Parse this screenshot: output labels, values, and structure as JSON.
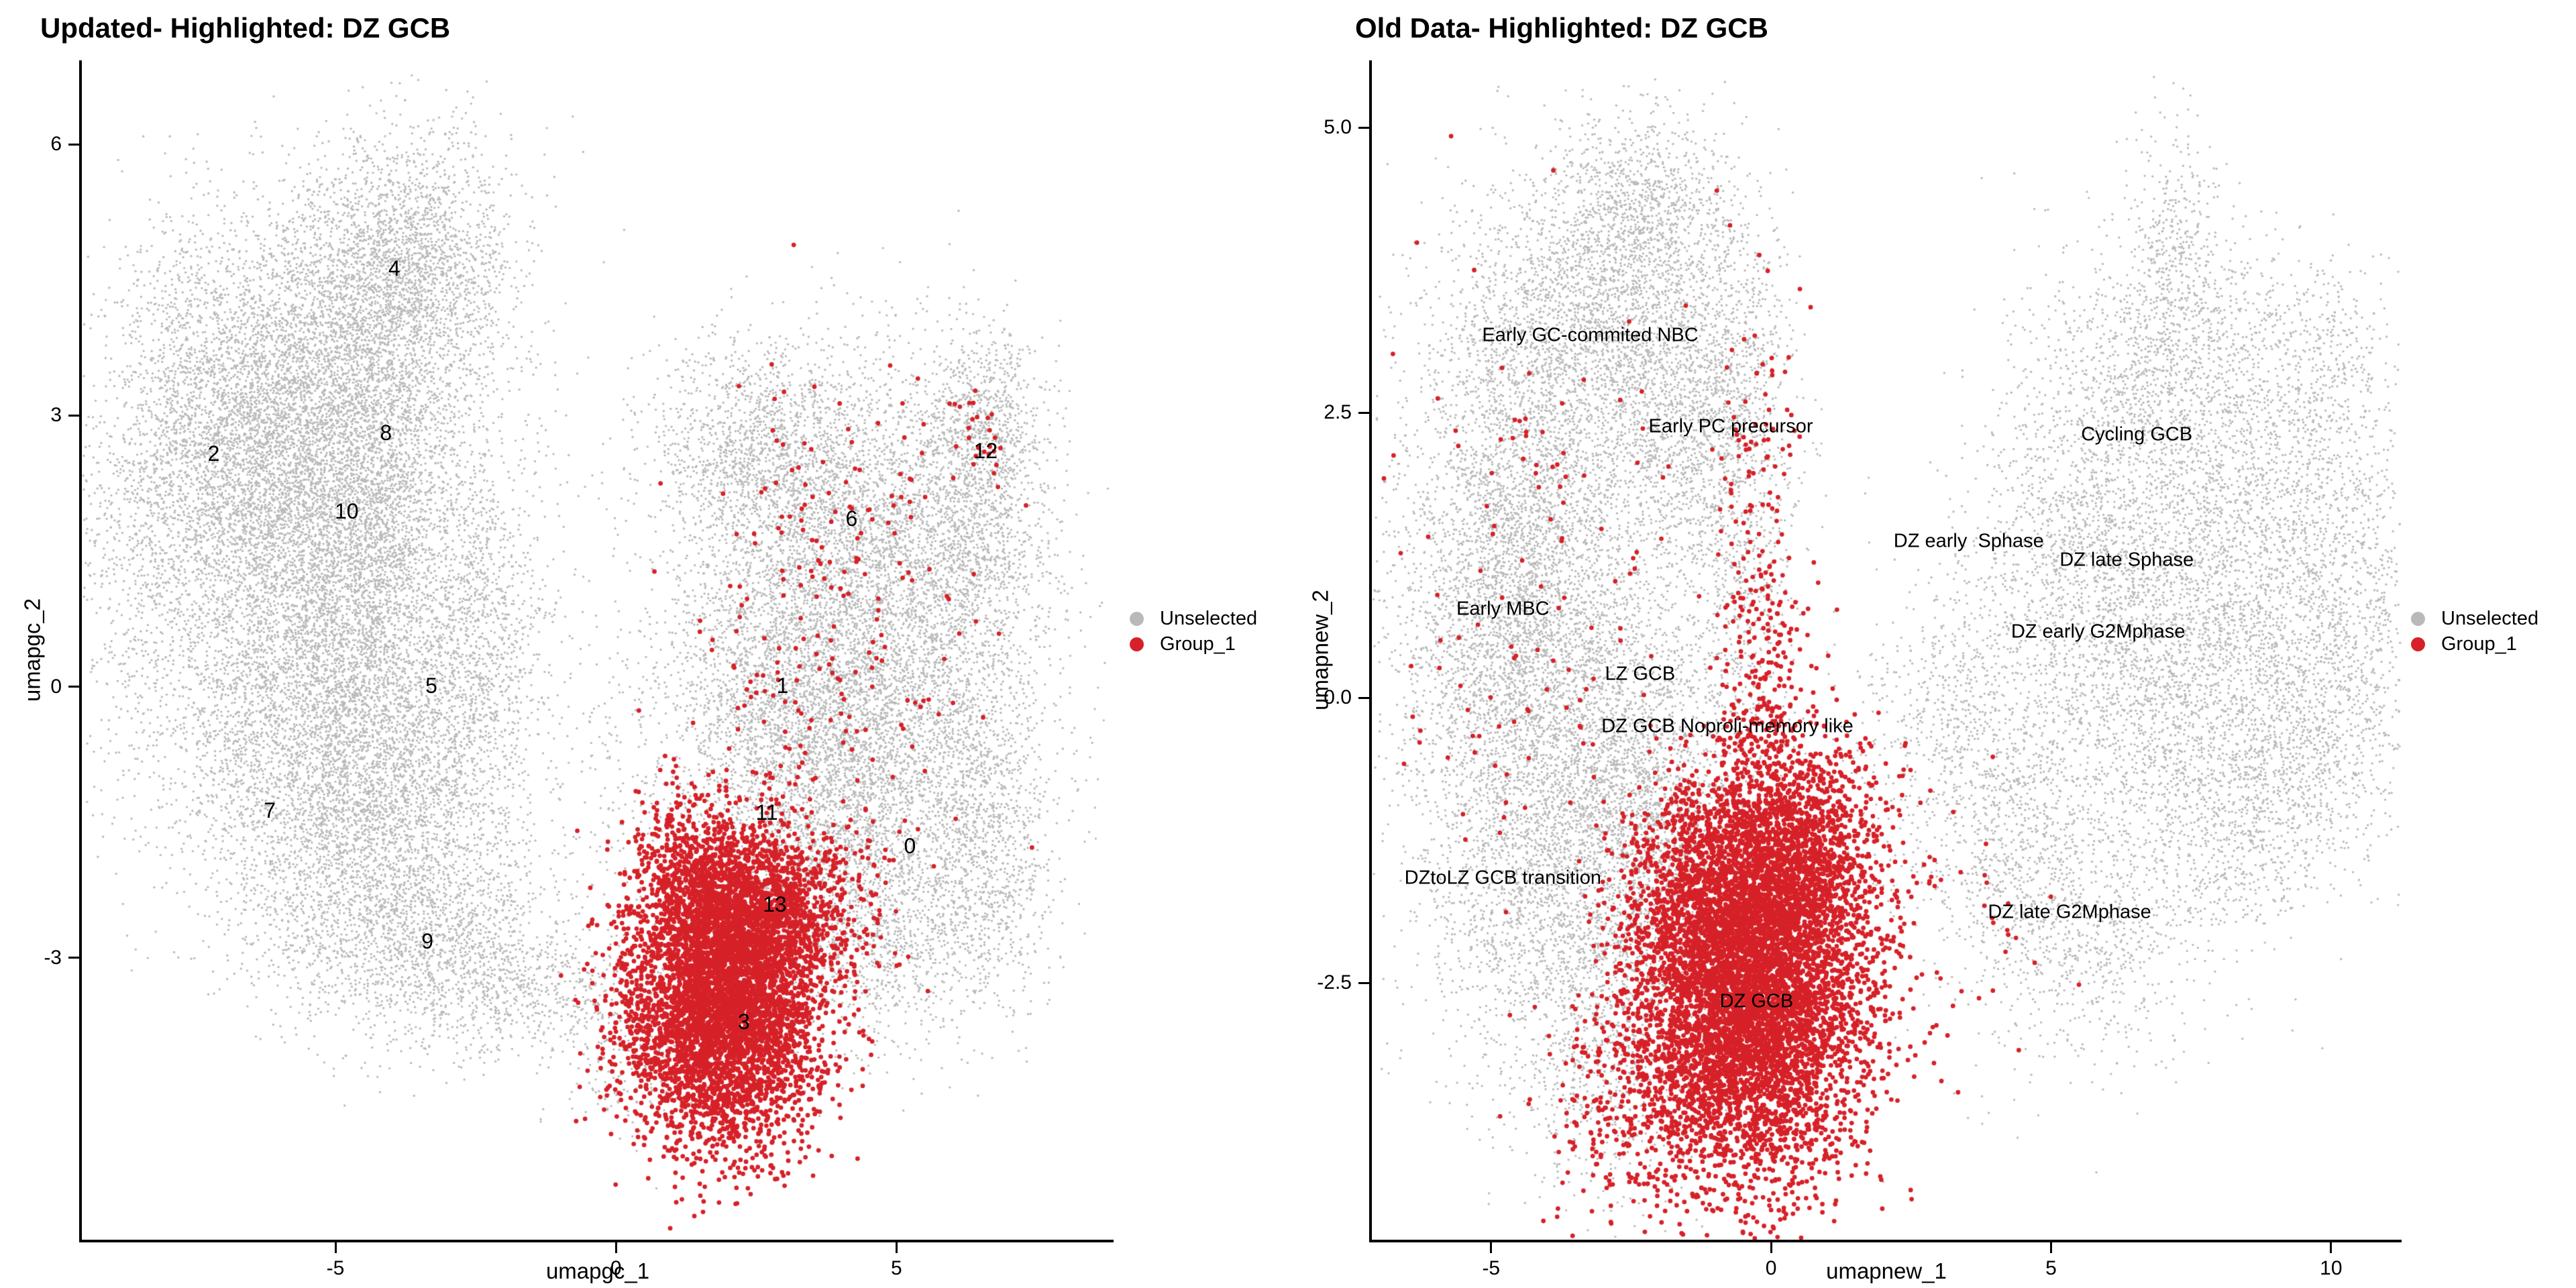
{
  "figure": {
    "background": "#ffffff",
    "point_color_unselected": "#B9B9B9",
    "point_color_highlight": "#D62128"
  },
  "chart_data": [
    {
      "type": "scatter",
      "title": "Updated- Highlighted: DZ GCB",
      "xlabel": "umapgc_1",
      "ylabel": "umapgc_2",
      "xlim": [
        -9.52,
        8.87
      ],
      "ylim": [
        -6.12,
        6.93
      ],
      "x_ticks": [
        {
          "value": -5,
          "label": "-5"
        },
        {
          "value": 0,
          "label": "0"
        },
        {
          "value": 5,
          "label": "5"
        }
      ],
      "y_ticks": [
        {
          "value": 6,
          "label": "6"
        },
        {
          "value": 3,
          "label": "3"
        },
        {
          "value": 0,
          "label": "0"
        },
        {
          "value": -3,
          "label": "-3"
        }
      ],
      "legend": [
        {
          "label": "Unselected",
          "color": "#B9B9B9"
        },
        {
          "label": "Group_1",
          "color": "#D62128"
        }
      ],
      "groups": [
        {
          "name": "Unselected",
          "color": "#B9B9B9",
          "point_radius": 1.7
        },
        {
          "name": "Group_1",
          "color": "#D62128",
          "point_radius": 3.4
        }
      ],
      "cluster_labels": [
        {
          "label": "4",
          "x": -3.95,
          "y": 4.63
        },
        {
          "label": "8",
          "x": -4.1,
          "y": 2.81
        },
        {
          "label": "2",
          "x": -7.17,
          "y": 2.58
        },
        {
          "label": "10",
          "x": -4.8,
          "y": 1.94
        },
        {
          "label": "6",
          "x": 4.2,
          "y": 1.86
        },
        {
          "label": "12",
          "x": 6.59,
          "y": 2.61
        },
        {
          "label": "5",
          "x": -3.29,
          "y": 0.01
        },
        {
          "label": "1",
          "x": 2.97,
          "y": 0.01
        },
        {
          "label": "7",
          "x": -6.17,
          "y": -1.37
        },
        {
          "label": "11",
          "x": 2.69,
          "y": -1.39
        },
        {
          "label": "0",
          "x": 5.24,
          "y": -1.76
        },
        {
          "label": "13",
          "x": 2.83,
          "y": -2.41
        },
        {
          "label": "9",
          "x": -3.36,
          "y": -2.82
        },
        {
          "label": "3",
          "x": 2.28,
          "y": -3.71
        }
      ],
      "annotations": [],
      "density_blobs": [
        {
          "group": "Unselected",
          "x": -3.9,
          "y": 4.6,
          "sx": 1.05,
          "sy": 0.75,
          "n": 2600
        },
        {
          "group": "Unselected",
          "x": -5.6,
          "y": 3.4,
          "sx": 1.25,
          "sy": 0.8,
          "n": 2200
        },
        {
          "group": "Unselected",
          "x": -6.8,
          "y": 2.3,
          "sx": 1.05,
          "sy": 0.9,
          "n": 2200
        },
        {
          "group": "Unselected",
          "x": -4.4,
          "y": 2.3,
          "sx": 1.0,
          "sy": 0.9,
          "n": 2200
        },
        {
          "group": "Unselected",
          "x": -5.0,
          "y": 1.2,
          "sx": 1.3,
          "sy": 0.8,
          "n": 2000
        },
        {
          "group": "Unselected",
          "x": -5.8,
          "y": -0.3,
          "sx": 1.3,
          "sy": 0.9,
          "n": 2200
        },
        {
          "group": "Unselected",
          "x": -4.0,
          "y": -0.6,
          "sx": 1.0,
          "sy": 0.9,
          "n": 1800
        },
        {
          "group": "Unselected",
          "x": -4.6,
          "y": -2.0,
          "sx": 1.3,
          "sy": 0.8,
          "n": 1800
        },
        {
          "group": "Unselected",
          "x": -3.0,
          "y": -3.0,
          "sx": 1.2,
          "sy": 0.55,
          "n": 1200
        },
        {
          "group": "Unselected",
          "x": -2.3,
          "y": 0.3,
          "sx": 0.7,
          "sy": 1.2,
          "n": 900
        },
        {
          "group": "Unselected",
          "x": -8.5,
          "y": 1.6,
          "sx": 0.6,
          "sy": 1.3,
          "n": 600
        },
        {
          "group": "Unselected",
          "x": -7.4,
          "y": 4.0,
          "sx": 0.7,
          "sy": 0.8,
          "n": 450
        },
        {
          "group": "Unselected",
          "x": -1.3,
          "y": -3.3,
          "sx": 0.8,
          "sy": 0.35,
          "n": 250
        },
        {
          "group": "Unselected",
          "x": 0.2,
          "y": -4.0,
          "sx": 0.7,
          "sy": 0.5,
          "n": 250
        },
        {
          "group": "Unselected",
          "x": 2.6,
          "y": 2.6,
          "sx": 1.0,
          "sy": 0.6,
          "n": 1400
        },
        {
          "group": "Unselected",
          "x": 4.3,
          "y": 1.6,
          "sx": 1.2,
          "sy": 1.0,
          "n": 2400
        },
        {
          "group": "Unselected",
          "x": 6.3,
          "y": 1.6,
          "sx": 0.8,
          "sy": 1.1,
          "n": 1600
        },
        {
          "group": "Unselected",
          "x": 6.6,
          "y": 2.9,
          "sx": 0.45,
          "sy": 0.5,
          "n": 500
        },
        {
          "group": "Unselected",
          "x": 2.9,
          "y": 0.1,
          "sx": 1.1,
          "sy": 1.0,
          "n": 2200
        },
        {
          "group": "Unselected",
          "x": 5.0,
          "y": -0.6,
          "sx": 1.2,
          "sy": 1.0,
          "n": 2200
        },
        {
          "group": "Unselected",
          "x": 6.6,
          "y": -1.9,
          "sx": 0.6,
          "sy": 0.9,
          "n": 900
        },
        {
          "group": "Unselected",
          "x": 3.6,
          "y": -1.5,
          "sx": 1.0,
          "sy": 0.8,
          "n": 1400
        },
        {
          "group": "Unselected",
          "x": 4.6,
          "y": -2.8,
          "sx": 0.9,
          "sy": 0.6,
          "n": 800
        },
        {
          "group": "Unselected",
          "x": 0.3,
          "y": -0.9,
          "sx": 0.5,
          "sy": 0.8,
          "n": 120
        },
        {
          "group": "Group_1",
          "x": 1.9,
          "y": -3.6,
          "sx": 0.85,
          "sy": 0.75,
          "n": 4500
        },
        {
          "group": "Group_1",
          "x": 2.6,
          "y": -2.5,
          "sx": 0.8,
          "sy": 0.5,
          "n": 1500
        },
        {
          "group": "Group_1",
          "x": 1.4,
          "y": -2.2,
          "sx": 0.6,
          "sy": 0.5,
          "n": 700
        },
        {
          "group": "Group_1",
          "x": 3.8,
          "y": -0.6,
          "sx": 1.3,
          "sy": 1.2,
          "n": 130
        },
        {
          "group": "Group_1",
          "x": 4.6,
          "y": 1.7,
          "sx": 0.9,
          "sy": 1.0,
          "n": 70
        },
        {
          "group": "Group_1",
          "x": 6.5,
          "y": 2.8,
          "sx": 0.25,
          "sy": 0.3,
          "n": 25
        },
        {
          "group": "Group_1",
          "x": 2.9,
          "y": 1.0,
          "sx": 0.9,
          "sy": 1.3,
          "n": 60
        }
      ]
    },
    {
      "type": "scatter",
      "title": "Old Data- Highlighted: DZ GCB",
      "xlabel": "umapnew_1",
      "ylabel": "umapnew_2",
      "xlim": [
        -7.13,
        11.26
      ],
      "ylim": [
        -4.75,
        5.59
      ],
      "x_ticks": [
        {
          "value": -5,
          "label": "-5"
        },
        {
          "value": 0,
          "label": "0"
        },
        {
          "value": 5,
          "label": "5"
        },
        {
          "value": 10,
          "label": "10"
        }
      ],
      "y_ticks": [
        {
          "value": 5,
          "label": "5.0"
        },
        {
          "value": 2.5,
          "label": "2.5"
        },
        {
          "value": 0,
          "label": "0.0"
        },
        {
          "value": -2.5,
          "label": "-2.5"
        }
      ],
      "legend": [
        {
          "label": "Unselected",
          "color": "#B9B9B9"
        },
        {
          "label": "Group_1",
          "color": "#D62128"
        }
      ],
      "groups": [
        {
          "name": "Unselected",
          "color": "#B9B9B9",
          "point_radius": 1.7
        },
        {
          "name": "Group_1",
          "color": "#D62128",
          "point_radius": 3.4
        }
      ],
      "cluster_labels": [],
      "annotations": [
        {
          "text": "Early GC-commited NBC",
          "x": -3.23,
          "y": 3.18
        },
        {
          "text": "Early PC precursor",
          "x": -0.72,
          "y": 2.38
        },
        {
          "text": "Cycling GCB",
          "x": 6.53,
          "y": 2.31
        },
        {
          "text": "DZ early  Sphase",
          "x": 3.53,
          "y": 1.37
        },
        {
          "text": "DZ late Sphase",
          "x": 6.35,
          "y": 1.21
        },
        {
          "text": "DZ early G2Mphase",
          "x": 5.84,
          "y": 0.58
        },
        {
          "text": "Early MBC",
          "x": -4.79,
          "y": 0.78
        },
        {
          "text": "LZ GCB",
          "x": -2.34,
          "y": 0.21
        },
        {
          "text": "DZ GCB Noproli-memory like",
          "x": -0.78,
          "y": -0.25
        },
        {
          "text": "DZtoLZ GCB transition",
          "x": -4.79,
          "y": -1.58
        },
        {
          "text": "DZ late G2Mphase",
          "x": 5.33,
          "y": -1.88
        },
        {
          "text": "DZ GCB",
          "x": -0.26,
          "y": -2.66
        }
      ],
      "density_blobs": [
        {
          "group": "Unselected",
          "x": -2.4,
          "y": 4.3,
          "sx": 0.8,
          "sy": 0.45,
          "n": 900
        },
        {
          "group": "Unselected",
          "x": -3.6,
          "y": 3.2,
          "sx": 1.2,
          "sy": 0.7,
          "n": 2000
        },
        {
          "group": "Unselected",
          "x": -1.9,
          "y": 2.6,
          "sx": 0.8,
          "sy": 0.8,
          "n": 1400
        },
        {
          "group": "Unselected",
          "x": -4.6,
          "y": 1.6,
          "sx": 1.0,
          "sy": 0.8,
          "n": 1800
        },
        {
          "group": "Unselected",
          "x": -4.7,
          "y": 0.3,
          "sx": 1.1,
          "sy": 0.8,
          "n": 1800
        },
        {
          "group": "Unselected",
          "x": -3.2,
          "y": -0.3,
          "sx": 1.2,
          "sy": 0.9,
          "n": 2000
        },
        {
          "group": "Unselected",
          "x": -4.0,
          "y": -1.8,
          "sx": 1.2,
          "sy": 0.8,
          "n": 1800
        },
        {
          "group": "Unselected",
          "x": -2.0,
          "y": -1.2,
          "sx": 0.9,
          "sy": 0.8,
          "n": 1200
        },
        {
          "group": "Unselected",
          "x": -0.6,
          "y": 1.4,
          "sx": 0.55,
          "sy": 1.0,
          "n": 700
        },
        {
          "group": "Unselected",
          "x": -0.6,
          "y": 3.0,
          "sx": 0.5,
          "sy": 0.8,
          "n": 500
        },
        {
          "group": "Unselected",
          "x": -2.8,
          "y": -3.3,
          "sx": 0.9,
          "sy": 0.6,
          "n": 600
        },
        {
          "group": "Unselected",
          "x": 7.3,
          "y": 2.9,
          "sx": 1.1,
          "sy": 0.6,
          "n": 1200
        },
        {
          "group": "Unselected",
          "x": 7.2,
          "y": 4.0,
          "sx": 0.4,
          "sy": 0.5,
          "n": 300
        },
        {
          "group": "Unselected",
          "x": 5.6,
          "y": 1.4,
          "sx": 1.0,
          "sy": 0.9,
          "n": 1500
        },
        {
          "group": "Unselected",
          "x": 8.8,
          "y": 1.2,
          "sx": 1.2,
          "sy": 0.9,
          "n": 1800
        },
        {
          "group": "Unselected",
          "x": 9.3,
          "y": -0.4,
          "sx": 1.0,
          "sy": 0.7,
          "n": 1100
        },
        {
          "group": "Unselected",
          "x": 6.9,
          "y": 0.2,
          "sx": 1.0,
          "sy": 0.8,
          "n": 1200
        },
        {
          "group": "Unselected",
          "x": 4.6,
          "y": -1.3,
          "sx": 1.0,
          "sy": 0.8,
          "n": 1100
        },
        {
          "group": "Unselected",
          "x": 3.3,
          "y": -0.2,
          "sx": 0.7,
          "sy": 0.7,
          "n": 500
        },
        {
          "group": "Unselected",
          "x": 10.6,
          "y": 0.8,
          "sx": 0.5,
          "sy": 0.8,
          "n": 400
        },
        {
          "group": "Unselected",
          "x": 9.9,
          "y": 2.8,
          "sx": 0.6,
          "sy": 0.6,
          "n": 400
        },
        {
          "group": "Unselected",
          "x": 6.0,
          "y": -2.2,
          "sx": 0.8,
          "sy": 0.5,
          "n": 400
        },
        {
          "group": "Unselected",
          "x": 8.0,
          "y": -1.2,
          "sx": 0.8,
          "sy": 0.6,
          "n": 500
        },
        {
          "group": "Unselected",
          "x": 1.9,
          "y": -0.5,
          "sx": 0.5,
          "sy": 0.7,
          "n": 100
        },
        {
          "group": "Group_1",
          "x": -0.4,
          "y": -2.7,
          "sx": 1.0,
          "sy": 0.75,
          "n": 6000
        },
        {
          "group": "Group_1",
          "x": 0.3,
          "y": -1.4,
          "sx": 0.8,
          "sy": 0.55,
          "n": 1800
        },
        {
          "group": "Group_1",
          "x": -1.3,
          "y": -1.6,
          "sx": 0.7,
          "sy": 0.5,
          "n": 800
        },
        {
          "group": "Group_1",
          "x": -0.15,
          "y": 0.0,
          "sx": 0.45,
          "sy": 0.8,
          "n": 250
        },
        {
          "group": "Group_1",
          "x": -0.3,
          "y": 1.8,
          "sx": 0.4,
          "sy": 0.9,
          "n": 90
        },
        {
          "group": "Group_1",
          "x": -4.2,
          "y": 0.8,
          "sx": 1.3,
          "sy": 1.6,
          "n": 130
        },
        {
          "group": "Group_1",
          "x": 3.0,
          "y": -1.8,
          "sx": 1.2,
          "sy": 0.7,
          "n": 50
        },
        {
          "group": "Group_1",
          "x": -2.6,
          "y": -3.6,
          "sx": 0.8,
          "sy": 0.5,
          "n": 250
        }
      ]
    }
  ]
}
